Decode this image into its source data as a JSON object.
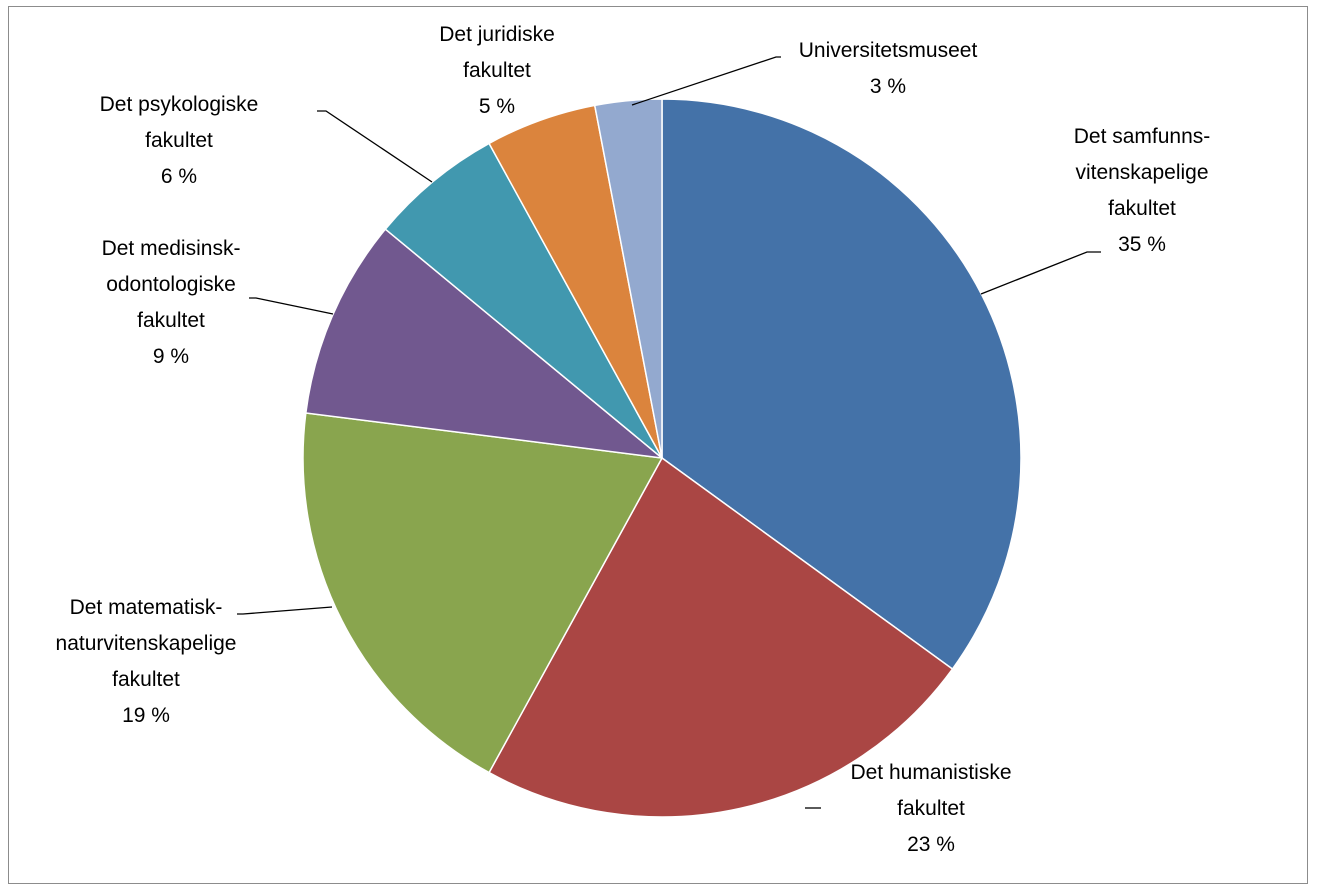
{
  "chart_data": {
    "type": "pie",
    "title": "",
    "start_angle_deg": 0,
    "direction": "clockwise",
    "legend": "none",
    "slices": [
      {
        "label_lines": [
          "Det samfunns-",
          "vitenskapelige",
          "fakultet"
        ],
        "value_label": "35 %",
        "value": 35,
        "color": "#4472a8"
      },
      {
        "label_lines": [
          "Det humanistiske",
          "fakultet"
        ],
        "value_label": "23 %",
        "value": 23,
        "color": "#aa4644"
      },
      {
        "label_lines": [
          "Det matematisk-",
          "naturvitenskapelige",
          "fakultet"
        ],
        "value_label": "19 %",
        "value": 19,
        "color": "#89a54e"
      },
      {
        "label_lines": [
          "Det medisinsk-",
          "odontologiske",
          "fakultet"
        ],
        "value_label": "9 %",
        "value": 9,
        "color": "#71588f"
      },
      {
        "label_lines": [
          "Det psykologiske",
          "fakultet"
        ],
        "value_label": "6 %",
        "value": 6,
        "color": "#4198af"
      },
      {
        "label_lines": [
          "Det juridiske",
          "fakultet"
        ],
        "value_label": "5 %",
        "value": 5,
        "color": "#db843d"
      },
      {
        "label_lines": [
          "Universitetsmuseet"
        ],
        "value_label": "3 %",
        "value": 3,
        "color": "#93a9cf"
      }
    ]
  }
}
